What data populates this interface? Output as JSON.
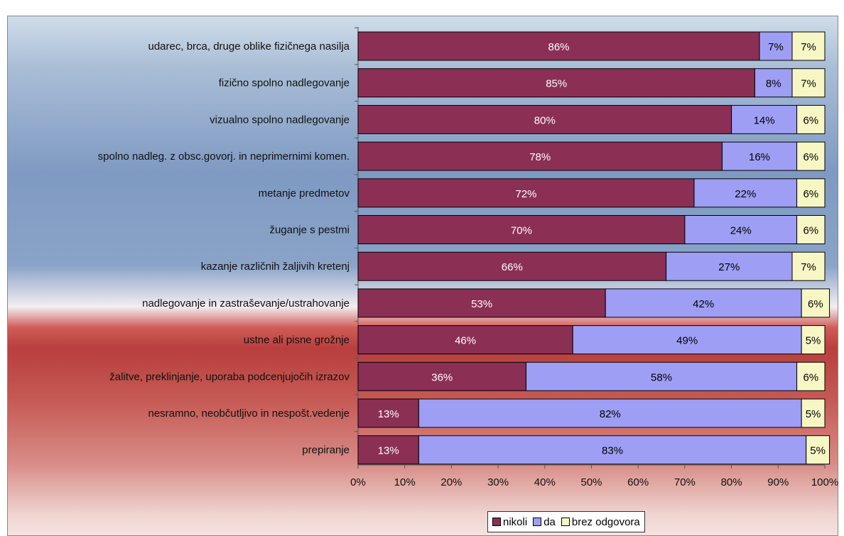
{
  "chart_data": {
    "type": "bar",
    "orientation": "horizontal",
    "stacked": true,
    "title": "",
    "categories": [
      "udarec, brca, druge oblike fizičnega nasilja",
      "fizično spolno nadlegovanje",
      "vizualno spolno nadlegovanje",
      "spolno nadleg. z obsc.govorj. in neprimernimi komen.",
      "metanje predmetov",
      "žuganje s pestmi",
      "kazanje različnih žaljivih kretenj",
      "nadlegovanje in zastraševanje/ustrahovanje",
      "ustne ali pisne grožnje",
      "žalitve, preklinjanje, uporaba podcenjujočih izrazov",
      "nesramno, neobčutljivo in nespošt.vedenje",
      "prepiranje"
    ],
    "series": [
      {
        "name": "nikoli",
        "color": "#8b2f55",
        "label_color": "#ffffff",
        "values": [
          86,
          85,
          80,
          78,
          72,
          70,
          66,
          53,
          46,
          36,
          13,
          13
        ],
        "value_labels": [
          "86%",
          "85%",
          "80%",
          "78%",
          "72%",
          "70%",
          "66%",
          "53%",
          "46%",
          "36%",
          "13%",
          "13%"
        ]
      },
      {
        "name": "da",
        "color": "#9e9ef5",
        "label_color": "#000000",
        "values": [
          7,
          8,
          14,
          16,
          22,
          24,
          27,
          42,
          49,
          58,
          82,
          83
        ],
        "value_labels": [
          "7%",
          "8%",
          "14%",
          "16%",
          "22%",
          "24%",
          "27%",
          "42%",
          "49%",
          "58%",
          "82%",
          "83%"
        ]
      },
      {
        "name": "brez odgovora",
        "color": "#f7f7c6",
        "label_color": "#000000",
        "values": [
          7,
          7,
          6,
          6,
          6,
          6,
          7,
          6,
          5,
          6,
          5,
          5
        ],
        "value_labels": [
          "7%",
          "7%",
          "6%",
          "6%",
          "6%",
          "6%",
          "7%",
          "6%",
          "5%",
          "6%",
          "5%",
          "5%"
        ]
      }
    ],
    "x_ticks": [
      "0%",
      "10%",
      "20%",
      "30%",
      "40%",
      "50%",
      "60%",
      "70%",
      "80%",
      "90%",
      "100%"
    ],
    "xlim": [
      0,
      100
    ],
    "legend_position": "bottom"
  }
}
